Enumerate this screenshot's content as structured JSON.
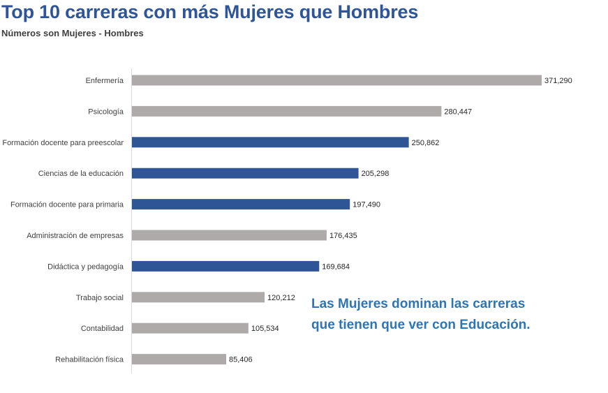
{
  "chart_data": {
    "type": "bar",
    "orientation": "horizontal",
    "title": "Top 10 carreras con más Mujeres que Hombres",
    "subtitle": "Números son Mujeres - Hombres",
    "categories": [
      "Enfermería",
      "Psicología",
      "Formación docente para preescolar",
      "Ciencias de la educación",
      "Formación docente para primaria",
      "Administración de empresas",
      "Didáctica y pedagogía",
      "Trabajo social",
      "Contabilidad",
      "Rehabilitación física"
    ],
    "values": [
      371290,
      280447,
      250862,
      205298,
      197490,
      176435,
      169684,
      120212,
      105534,
      85406
    ],
    "value_labels": [
      "371,290",
      "280,447",
      "250,862",
      "205,298",
      "197,490",
      "176,435",
      "169,684",
      "120,212",
      "105,534",
      "85,406"
    ],
    "highlighted": [
      false,
      false,
      true,
      true,
      true,
      false,
      true,
      false,
      false,
      false
    ],
    "xlim": [
      0,
      371290
    ],
    "grid": false,
    "legend": "none",
    "annotation": [
      "Las Mujeres dominan las carreras",
      "que tienen que ver con Educación."
    ]
  },
  "colors": {
    "title": "#2f5597",
    "subtitle": "#404040",
    "bar_default": "#aeaaaa",
    "bar_highlight": "#2f5597",
    "annotation": "#2e75b6",
    "axis": "#d9d9d9"
  }
}
